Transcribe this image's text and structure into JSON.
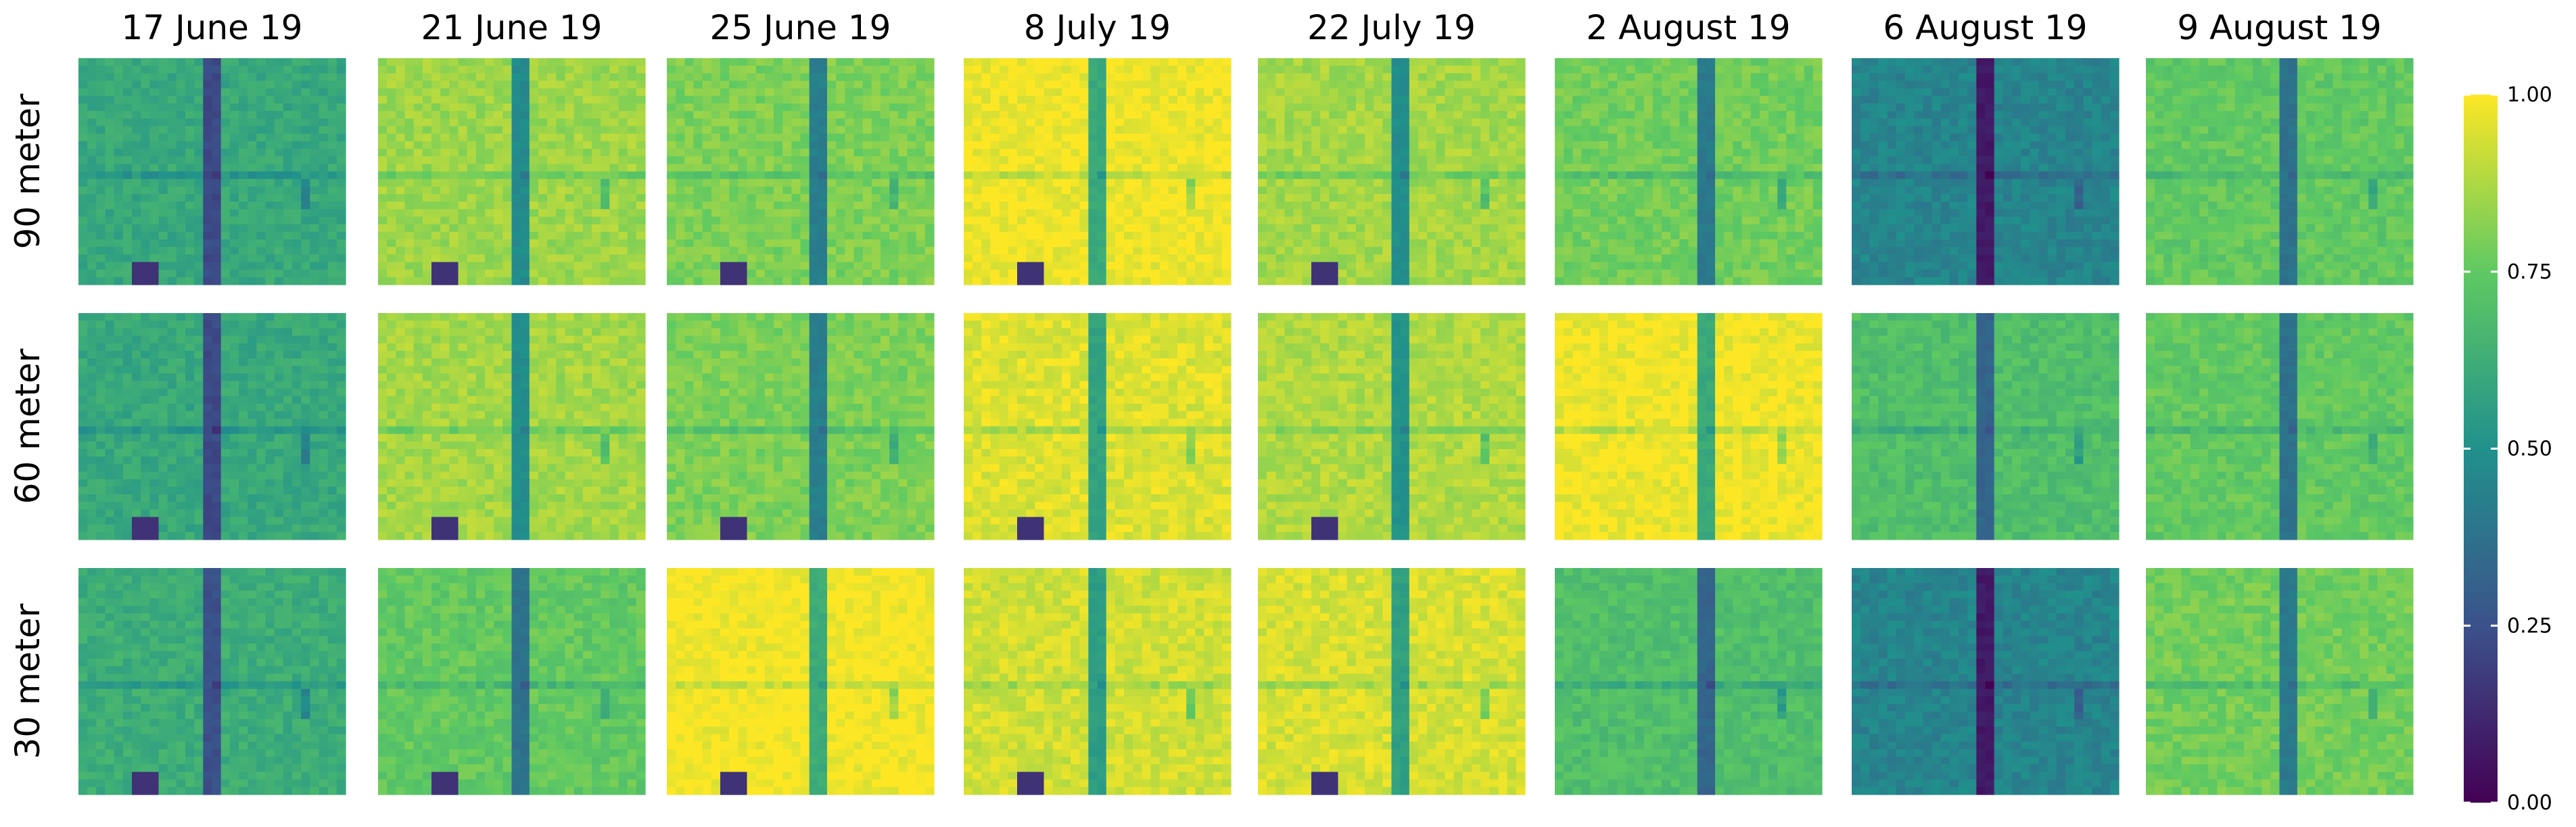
{
  "chart_data": {
    "type": "heatmap",
    "columns": [
      "17 June 19",
      "21 June 19",
      "25 June 19",
      "8 July 19",
      "22 July 19",
      "2 August 19",
      "6 August 19",
      "9 August 19"
    ],
    "rows": [
      "90 meter",
      "60 meter",
      "30 meter"
    ],
    "colorbar": {
      "range": [
        0.0,
        1.0
      ],
      "ticks": [
        0.0,
        0.25,
        0.5,
        0.75,
        1.0
      ],
      "tick_labels": [
        "0.00",
        "0.25",
        "0.50",
        "0.75",
        "1.00"
      ],
      "colormap": "viridis",
      "colors": [
        "#440154",
        "#3b528b",
        "#21918c",
        "#5ec962",
        "#fde725"
      ]
    },
    "panel_base_values": [
      [
        0.6,
        0.85,
        0.8,
        0.98,
        0.86,
        0.78,
        0.45,
        0.75
      ],
      [
        0.6,
        0.86,
        0.8,
        0.95,
        0.88,
        0.98,
        0.7,
        0.75
      ],
      [
        0.62,
        0.75,
        0.99,
        0.93,
        0.94,
        0.7,
        0.45,
        0.78
      ]
    ],
    "legend_placement": "right"
  }
}
